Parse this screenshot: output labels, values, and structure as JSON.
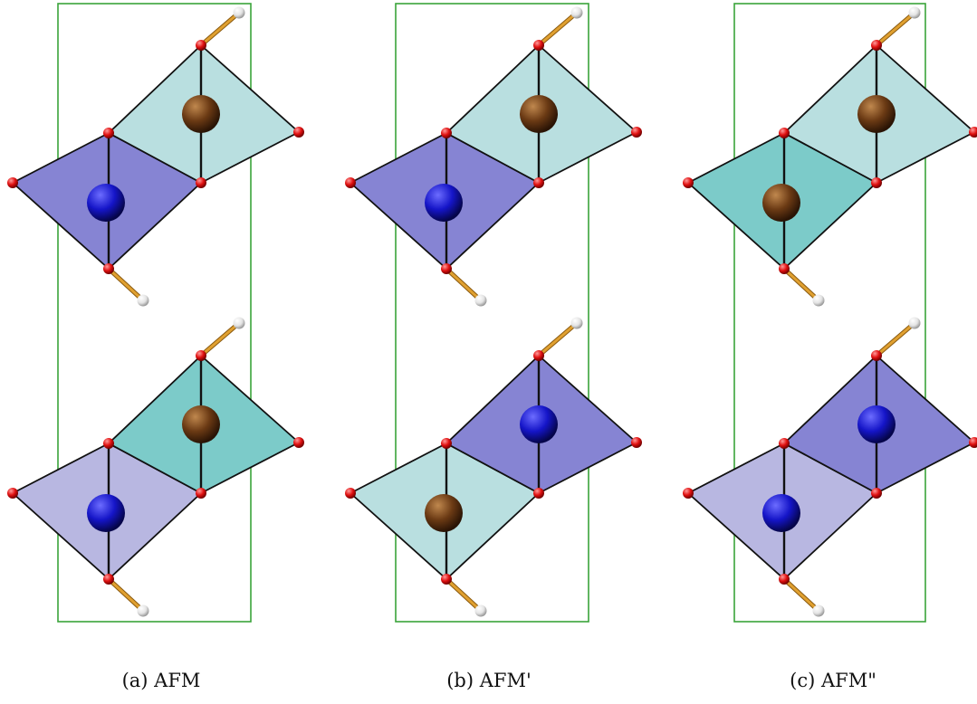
{
  "panels": [
    {
      "caption": "(a) AFM",
      "blocks": [
        {
          "left": {
            "fill": "#8684d3",
            "atom": "blue"
          },
          "right": {
            "fill": "#b9dfe0",
            "atom": "brown"
          }
        },
        {
          "left": {
            "fill": "#b8b7e1",
            "atom": "blue"
          },
          "right": {
            "fill": "#7ccbc9",
            "atom": "brown"
          }
        }
      ]
    },
    {
      "caption": "(b) AFM'",
      "blocks": [
        {
          "left": {
            "fill": "#8684d3",
            "atom": "blue"
          },
          "right": {
            "fill": "#b9dfe0",
            "atom": "brown"
          }
        },
        {
          "left": {
            "fill": "#b9dfe0",
            "atom": "brown"
          },
          "right": {
            "fill": "#8684d3",
            "atom": "blue"
          }
        }
      ]
    },
    {
      "caption": "(c) AFM\"",
      "blocks": [
        {
          "left": {
            "fill": "#7ccbc9",
            "atom": "brown"
          },
          "right": {
            "fill": "#b9dfe0",
            "atom": "brown"
          }
        },
        {
          "left": {
            "fill": "#b8b7e1",
            "atom": "blue"
          },
          "right": {
            "fill": "#8684d3",
            "atom": "blue"
          }
        }
      ]
    }
  ],
  "colors": {
    "cell_border": "#3aa43a",
    "edge": "#111111",
    "oxygen": "#e01010",
    "hydrogen": "#e8e8e8",
    "bond": "#e0a030",
    "blue_atom": "#1515c8",
    "brown_atom": "#6b3a14"
  }
}
